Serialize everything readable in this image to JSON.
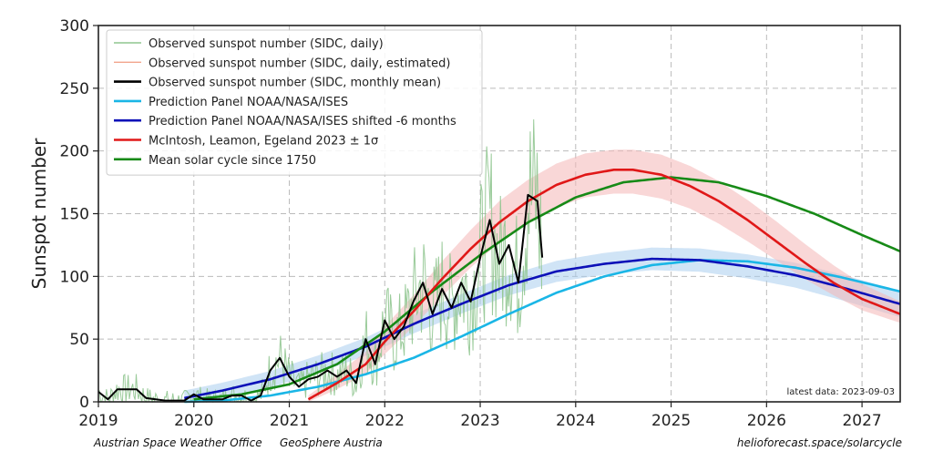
{
  "chart_data": {
    "type": "line",
    "xlabel": "",
    "ylabel": "Sunspot number",
    "xlim": [
      2019.0,
      2027.4
    ],
    "ylim": [
      0,
      300
    ],
    "x_ticks": [
      2019,
      2020,
      2021,
      2022,
      2023,
      2024,
      2025,
      2026,
      2027
    ],
    "y_ticks": [
      0,
      50,
      100,
      150,
      200,
      250,
      300
    ],
    "grid": true,
    "legend_position": "top-left",
    "legend": [
      {
        "label": "Observed sunspot number (SIDC, daily)",
        "color": "#8fc58f"
      },
      {
        "label": "Observed sunspot number (SIDC, daily, estimated)",
        "color": "#f2a58c"
      },
      {
        "label": "Observed sunspot number (SIDC, monthly mean)",
        "color": "#000000"
      },
      {
        "label": "Prediction Panel NOAA/NASA/ISES",
        "color": "#1ab6e6"
      },
      {
        "label": "Prediction Panel NOAA/NASA/ISES shifted -6 months",
        "color": "#0d11b8"
      },
      {
        "label": "McIntosh, Leamon, Egeland 2023 ± 1σ",
        "color": "#e01818"
      },
      {
        "label": "Mean solar cycle since 1750",
        "color": "#178a17"
      }
    ],
    "annotation": "latest data: 2023-09-03",
    "series": [
      {
        "name": "Observed sunspot number (SIDC, monthly mean)",
        "color": "#000000",
        "x": [
          2019.0,
          2019.1,
          2019.2,
          2019.3,
          2019.4,
          2019.5,
          2019.6,
          2019.7,
          2019.8,
          2019.9,
          2020.0,
          2020.1,
          2020.2,
          2020.3,
          2020.4,
          2020.5,
          2020.6,
          2020.7,
          2020.8,
          2020.9,
          2021.0,
          2021.1,
          2021.2,
          2021.3,
          2021.4,
          2021.5,
          2021.6,
          2021.7,
          2021.8,
          2021.9,
          2022.0,
          2022.1,
          2022.2,
          2022.3,
          2022.4,
          2022.5,
          2022.6,
          2022.7,
          2022.8,
          2022.9,
          2023.0,
          2023.1,
          2023.2,
          2023.3,
          2023.4,
          2023.5,
          2023.6,
          2023.65
        ],
        "y": [
          8,
          2,
          10,
          10,
          10,
          3,
          2,
          1,
          1,
          1,
          6,
          2,
          2,
          2,
          5,
          5,
          1,
          5,
          25,
          35,
          20,
          12,
          18,
          20,
          25,
          20,
          25,
          15,
          50,
          30,
          65,
          50,
          60,
          80,
          95,
          70,
          90,
          75,
          95,
          80,
          115,
          145,
          110,
          125,
          95,
          165,
          160,
          115
        ]
      },
      {
        "name": "Prediction Panel NOAA/NASA/ISES",
        "color": "#1ab6e6",
        "x": [
          2019.9,
          2020.3,
          2020.8,
          2021.3,
          2021.8,
          2022.3,
          2022.8,
          2023.3,
          2023.8,
          2024.3,
          2024.8,
          2025.3,
          2025.8,
          2026.3,
          2026.8,
          2027.4
        ],
        "y": [
          0,
          1,
          5,
          12,
          22,
          35,
          52,
          70,
          87,
          100,
          109,
          113,
          112,
          107,
          99,
          88
        ]
      },
      {
        "name": "Prediction Panel NOAA/NASA/ISES shifted -6 months",
        "color": "#0d11b8",
        "x": [
          2019.9,
          2020.3,
          2020.8,
          2021.3,
          2021.8,
          2022.3,
          2022.8,
          2023.3,
          2023.8,
          2024.3,
          2024.8,
          2025.3,
          2025.8,
          2026.3,
          2026.8,
          2027.4
        ],
        "y": [
          3,
          9,
          18,
          30,
          44,
          62,
          78,
          93,
          104,
          110,
          114,
          113,
          108,
          101,
          91,
          78
        ]
      },
      {
        "name": "McIntosh, Leamon, Egeland 2023 ± 1σ",
        "color": "#e01818",
        "x": [
          2021.2,
          2021.5,
          2021.8,
          2022.0,
          2022.3,
          2022.6,
          2022.9,
          2023.2,
          2023.5,
          2023.8,
          2024.1,
          2024.4,
          2024.6,
          2024.9,
          2025.2,
          2025.5,
          2025.8,
          2026.1,
          2026.4,
          2026.7,
          2027.0,
          2027.4
        ],
        "y": [
          2,
          15,
          30,
          48,
          72,
          98,
          122,
          143,
          160,
          173,
          181,
          185,
          185,
          181,
          172,
          160,
          145,
          128,
          111,
          95,
          82,
          70
        ],
        "band_lower": [
          0,
          10,
          22,
          38,
          60,
          84,
          107,
          127,
          143,
          155,
          163,
          166,
          166,
          162,
          154,
          142,
          128,
          113,
          98,
          85,
          73,
          63
        ],
        "band_upper": [
          5,
          22,
          40,
          60,
          85,
          112,
          137,
          160,
          177,
          190,
          198,
          201,
          201,
          197,
          188,
          176,
          161,
          144,
          126,
          109,
          94,
          80
        ]
      },
      {
        "name": "Mean solar cycle since 1750",
        "color": "#178a17",
        "x": [
          2020.0,
          2020.5,
          2021.0,
          2021.5,
          2022.0,
          2022.5,
          2023.0,
          2023.5,
          2024.0,
          2024.5,
          2025.0,
          2025.5,
          2026.0,
          2026.5,
          2027.0,
          2027.4
        ],
        "y": [
          2,
          6,
          14,
          30,
          56,
          88,
          117,
          143,
          163,
          175,
          179,
          175,
          164,
          150,
          133,
          120
        ]
      }
    ]
  },
  "footer": {
    "left_1": "Austrian Space Weather Office",
    "left_2": "GeoSphere Austria",
    "right": "helioforecast.space/solarcycle"
  }
}
